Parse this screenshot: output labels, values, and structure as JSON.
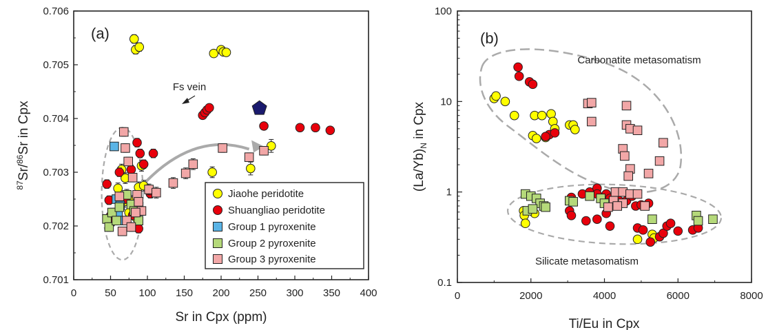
{
  "colors": {
    "jiaohe": "#ffff00",
    "shuangliao": "#e8000b",
    "group1": "#5ab4e6",
    "group2": "#b5d97a",
    "group3": "#f2a7a7",
    "fs_vein": "#1a1a6e",
    "envelope": "#aaaaaa",
    "arrow": "#aaaaaa"
  },
  "chart_data": [
    {
      "type": "scatter",
      "panel_label": "(a)",
      "xlabel": "Sr in Cpx (ppm)",
      "ylabel_parts": {
        "sup1": "87",
        "mid": "Sr/",
        "sup2": "86",
        "end": "Sr in Cpx"
      },
      "xlim": [
        0,
        400
      ],
      "ylim": [
        0.701,
        0.706
      ],
      "xticks": [
        "0",
        "50",
        "100",
        "150",
        "200",
        "250",
        "300",
        "350",
        "400"
      ],
      "yticks": [
        "0.701",
        "0.702",
        "0.703",
        "0.704",
        "0.705",
        "0.706"
      ],
      "annotation": "Fs vein",
      "legend": {
        "placement": "bottom-right",
        "entries": [
          "Jiaohe peridotite",
          "Shuangliao peridotite",
          "Group 1 pyroxenite",
          "Group 2 pyroxenite",
          "Group 3 pyroxenite"
        ]
      },
      "series": [
        {
          "key": "jiaohe",
          "marker": "circle",
          "x": [
            82,
            84,
            89,
            190,
            200,
            203,
            207,
            188,
            240,
            268,
            65,
            70,
            72,
            78,
            88,
            92,
            95,
            60,
            68,
            75,
            85
          ],
          "y": [
            0.70548,
            0.70528,
            0.70533,
            0.70521,
            0.70528,
            0.70524,
            0.70523,
            0.703,
            0.70307,
            0.70349,
            0.70305,
            0.70289,
            0.70258,
            0.70246,
            0.70272,
            0.70312,
            0.70275,
            0.7027,
            0.70245,
            0.70225,
            0.70215
          ],
          "yerr": [
            8e-05,
            8e-05,
            8e-05,
            4e-05,
            4e-05,
            4e-05,
            4e-05,
            0.0001,
            0.00012,
            0.00012,
            0.0001,
            0.0001,
            0.0001,
            0.0001,
            0.0001,
            0.0001,
            0.0001,
            0.0001,
            0.0001,
            0.0001,
            0.0001
          ]
        },
        {
          "key": "shuangliao",
          "marker": "circle",
          "x": [
            175,
            178,
            181,
            184,
            258,
            307,
            328,
            348,
            45,
            48,
            50,
            62,
            70,
            78,
            86,
            90,
            95,
            104,
            108,
            52,
            80,
            88
          ],
          "y": [
            0.70406,
            0.70411,
            0.70416,
            0.7042,
            0.70386,
            0.70383,
            0.70383,
            0.70378,
            0.70278,
            0.70248,
            0.70219,
            0.703,
            0.7025,
            0.70305,
            0.70355,
            0.70335,
            0.70315,
            0.7026,
            0.70335,
            0.70208,
            0.7022,
            0.70195
          ],
          "yerr": [
            3e-05,
            3e-05,
            3e-05,
            3e-05,
            0,
            0,
            0,
            0,
            8e-05,
            8e-05,
            8e-05,
            8e-05,
            8e-05,
            8e-05,
            8e-05,
            8e-05,
            8e-05,
            8e-05,
            8e-05,
            8e-05,
            8e-05,
            8e-05
          ]
        },
        {
          "key": "group1",
          "marker": "square",
          "x": [
            55,
            58,
            60,
            63,
            66
          ],
          "y": [
            0.70348,
            0.7025,
            0.70225,
            0.70238,
            0.7021
          ],
          "yerr": [
            0,
            0,
            0,
            0,
            0
          ]
        },
        {
          "key": "group2",
          "marker": "square",
          "x": [
            45,
            48,
            52,
            58,
            62,
            72,
            78,
            82,
            88
          ],
          "y": [
            0.70213,
            0.70198,
            0.70225,
            0.7021,
            0.70235,
            0.70258,
            0.7024,
            0.70228,
            0.7021
          ],
          "yerr": [
            8e-05,
            8e-05,
            8e-05,
            8e-05,
            8e-05,
            8e-05,
            8e-05,
            8e-05,
            8e-05
          ]
        },
        {
          "key": "group3",
          "marker": "square",
          "x": [
            68,
            70,
            74,
            80,
            86,
            88,
            92,
            102,
            112,
            135,
            152,
            162,
            202,
            238,
            258,
            62,
            66,
            72,
            78,
            84
          ],
          "y": [
            0.70375,
            0.70345,
            0.7032,
            0.7029,
            0.70258,
            0.70245,
            0.70228,
            0.70268,
            0.70262,
            0.7028,
            0.70298,
            0.70315,
            0.70345,
            0.70328,
            0.7034,
            0.70255,
            0.7019,
            0.7021,
            0.70198,
            0.70225
          ],
          "yerr": [
            8e-05,
            8e-05,
            8e-05,
            8e-05,
            8e-05,
            8e-05,
            8e-05,
            0.0001,
            0.0001,
            0.0001,
            0.0001,
            0.0001,
            8e-05,
            8e-05,
            8e-05,
            8e-05,
            8e-05,
            8e-05,
            8e-05,
            8e-05
          ]
        },
        {
          "key": "fs_vein",
          "marker": "pentagon",
          "x": [
            252
          ],
          "y": [
            0.70419
          ],
          "yerr": [
            0
          ]
        }
      ]
    },
    {
      "type": "scatter",
      "panel_label": "(b)",
      "xlabel": "Ti/Eu in Cpx",
      "ylabel_parts": {
        "pre": "(La/Yb)",
        "sub": "N",
        "end": " in Cpx"
      },
      "xlim": [
        0,
        8000
      ],
      "ylim": [
        0.1,
        100
      ],
      "yscale": "log",
      "xticks": [
        "0",
        "2000",
        "4000",
        "6000",
        "8000"
      ],
      "yticks": [
        "0.1",
        "1",
        "10",
        "100"
      ],
      "annotations": [
        "Carbonatite metasomatism",
        "Silicate metasomatism"
      ],
      "series": [
        {
          "key": "jiaohe",
          "marker": "circle",
          "x": [
            1000,
            1050,
            1300,
            1550,
            2100,
            2300,
            2050,
            2150,
            2550,
            2600,
            2650,
            2400,
            3050,
            3150,
            3200,
            1800,
            1820,
            1850,
            2100,
            4900,
            5300,
            5350
          ],
          "y": [
            10.8,
            11.5,
            10.0,
            7.0,
            7.0,
            7.0,
            4.2,
            3.9,
            7.3,
            6.0,
            5.0,
            4.0,
            5.5,
            5.5,
            4.9,
            0.62,
            0.55,
            0.45,
            0.58,
            0.3,
            0.34,
            0.31
          ]
        },
        {
          "key": "shuangliao",
          "marker": "circle",
          "x": [
            1650,
            1680,
            1960,
            2050,
            2500,
            2650,
            2400,
            3600,
            3800,
            3100,
            3400,
            3800,
            4050,
            4150,
            4400,
            4600,
            4850,
            5000,
            5200,
            3050,
            3100,
            3500,
            3800,
            4050,
            4150,
            4900,
            5050,
            5250,
            5500,
            5600,
            5700,
            5800,
            6000,
            6400,
            6550,
            4750
          ],
          "y": [
            24,
            19,
            16.5,
            15.5,
            4.3,
            4.5,
            4.1,
            1.0,
            1.1,
            0.87,
            0.95,
            0.95,
            0.95,
            0.85,
            0.8,
            0.8,
            0.7,
            0.72,
            0.75,
            0.62,
            0.55,
            0.48,
            0.5,
            0.58,
            0.42,
            0.4,
            0.38,
            0.28,
            0.32,
            0.35,
            0.42,
            0.45,
            0.37,
            0.38,
            0.4,
            0.9
          ]
        },
        {
          "key": "group2",
          "marker": "square",
          "x": [
            1850,
            2000,
            2150,
            2250,
            2350,
            2400,
            1900,
            2050,
            3050,
            3150,
            3600,
            3900,
            4000,
            5300,
            6500,
            6550,
            6950
          ],
          "y": [
            0.95,
            0.9,
            0.85,
            0.75,
            0.7,
            0.68,
            0.62,
            0.65,
            0.8,
            0.78,
            0.9,
            0.85,
            0.75,
            0.5,
            0.55,
            0.48,
            0.5
          ]
        },
        {
          "key": "group3",
          "marker": "square",
          "x": [
            3550,
            3650,
            3650,
            4600,
            4600,
            4700,
            4900,
            5600,
            4500,
            4550,
            4700,
            4650,
            5200,
            5500,
            4300,
            4500,
            4700,
            4900,
            4500,
            4250,
            4350,
            4100,
            5100
          ],
          "y": [
            9.5,
            9.7,
            6.0,
            9.0,
            5.5,
            5.0,
            4.8,
            3.5,
            3.0,
            2.5,
            1.8,
            1.5,
            1.6,
            2.2,
            1.0,
            1.0,
            0.95,
            0.95,
            0.75,
            0.8,
            0.7,
            0.68,
            0.7
          ]
        }
      ]
    }
  ]
}
